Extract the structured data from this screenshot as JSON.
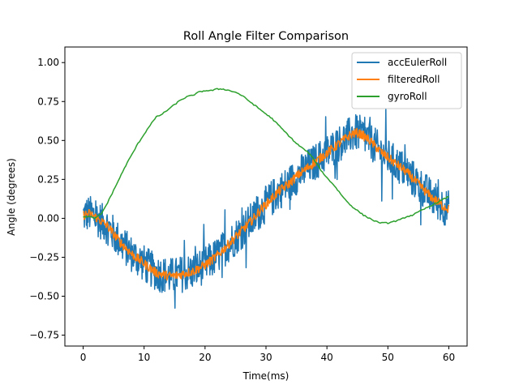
{
  "chart_data": {
    "type": "line",
    "title": "Roll Angle Filter Comparison",
    "xlabel": "Time(ms)",
    "ylabel": "Angle (degrees)",
    "xlim": [
      -3,
      63
    ],
    "ylim": [
      -0.82,
      1.1
    ],
    "xticks": [
      0,
      10,
      20,
      30,
      40,
      50,
      60
    ],
    "yticks": [
      -0.75,
      -0.5,
      -0.25,
      0.0,
      0.25,
      0.5,
      0.75,
      1.0
    ],
    "xtick_labels": [
      "0",
      "10",
      "20",
      "30",
      "40",
      "50",
      "60"
    ],
    "ytick_labels": [
      "−0.75",
      "−0.50",
      "−0.25",
      "0.00",
      "0.25",
      "0.50",
      "0.75",
      "1.00"
    ],
    "grid": false,
    "legend_position": "top-right",
    "series": [
      {
        "name": "accEulerRoll",
        "color": "#1f77b4",
        "x": [
          0,
          1,
          2,
          3,
          4,
          5,
          6,
          7,
          8,
          9,
          10,
          11,
          12,
          13,
          14,
          15,
          16,
          17,
          18,
          19,
          20,
          21,
          22,
          23,
          24,
          25,
          26,
          27,
          28,
          29,
          30,
          31,
          32,
          33,
          34,
          35,
          36,
          37,
          38,
          39,
          40,
          41,
          42,
          43,
          44,
          45,
          46,
          47,
          48,
          49,
          50,
          51,
          52,
          53,
          54,
          55,
          56,
          57,
          58,
          59,
          60
        ],
        "y": [
          0.02,
          0.03,
          0.01,
          -0.02,
          -0.05,
          -0.1,
          -0.15,
          -0.19,
          -0.23,
          -0.26,
          -0.29,
          -0.32,
          -0.35,
          -0.36,
          -0.37,
          -0.37,
          -0.36,
          -0.35,
          -0.34,
          -0.32,
          -0.3,
          -0.27,
          -0.24,
          -0.2,
          -0.16,
          -0.12,
          -0.08,
          -0.04,
          0.0,
          0.05,
          0.09,
          0.13,
          0.17,
          0.2,
          0.23,
          0.27,
          0.3,
          0.33,
          0.36,
          0.39,
          0.42,
          0.45,
          0.48,
          0.51,
          0.54,
          0.55,
          0.53,
          0.5,
          0.46,
          0.42,
          0.39,
          0.36,
          0.33,
          0.3,
          0.26,
          0.22,
          0.18,
          0.14,
          0.11,
          0.08,
          0.06
        ],
        "noise": 0.12
      },
      {
        "name": "filteredRoll",
        "color": "#ff7f0e",
        "x": [
          0,
          1,
          2,
          3,
          4,
          5,
          6,
          7,
          8,
          9,
          10,
          11,
          12,
          13,
          14,
          15,
          16,
          17,
          18,
          19,
          20,
          21,
          22,
          23,
          24,
          25,
          26,
          27,
          28,
          29,
          30,
          31,
          32,
          33,
          34,
          35,
          36,
          37,
          38,
          39,
          40,
          41,
          42,
          43,
          44,
          45,
          46,
          47,
          48,
          49,
          50,
          51,
          52,
          53,
          54,
          55,
          56,
          57,
          58,
          59,
          60
        ],
        "y": [
          0.02,
          0.03,
          0.01,
          -0.02,
          -0.05,
          -0.1,
          -0.15,
          -0.19,
          -0.23,
          -0.26,
          -0.29,
          -0.32,
          -0.35,
          -0.36,
          -0.37,
          -0.37,
          -0.36,
          -0.35,
          -0.34,
          -0.32,
          -0.3,
          -0.27,
          -0.24,
          -0.2,
          -0.16,
          -0.12,
          -0.08,
          -0.04,
          0.0,
          0.05,
          0.09,
          0.13,
          0.17,
          0.2,
          0.23,
          0.27,
          0.3,
          0.33,
          0.36,
          0.39,
          0.42,
          0.45,
          0.48,
          0.51,
          0.54,
          0.55,
          0.53,
          0.5,
          0.46,
          0.42,
          0.39,
          0.36,
          0.33,
          0.3,
          0.26,
          0.22,
          0.18,
          0.14,
          0.11,
          0.08,
          0.06
        ],
        "noise": 0.03
      },
      {
        "name": "gyroRoll",
        "color": "#2ca02c",
        "x": [
          0,
          1,
          2,
          3,
          4,
          5,
          6,
          7,
          8,
          9,
          10,
          11,
          12,
          13,
          14,
          15,
          16,
          17,
          18,
          19,
          20,
          21,
          22,
          23,
          24,
          25,
          26,
          27,
          28,
          29,
          30,
          31,
          32,
          33,
          34,
          35,
          36,
          37,
          38,
          39,
          40,
          41,
          42,
          43,
          44,
          45,
          46,
          47,
          48,
          49,
          50,
          51,
          52,
          53,
          54,
          55,
          56,
          57,
          58,
          59,
          60
        ],
        "y": [
          0.01,
          0.01,
          0.0,
          0.03,
          0.1,
          0.18,
          0.26,
          0.34,
          0.41,
          0.48,
          0.54,
          0.6,
          0.65,
          0.67,
          0.7,
          0.73,
          0.76,
          0.78,
          0.79,
          0.81,
          0.82,
          0.82,
          0.83,
          0.83,
          0.82,
          0.81,
          0.79,
          0.76,
          0.73,
          0.7,
          0.67,
          0.64,
          0.6,
          0.56,
          0.52,
          0.48,
          0.45,
          0.42,
          0.37,
          0.31,
          0.26,
          0.22,
          0.17,
          0.12,
          0.08,
          0.05,
          0.02,
          0.0,
          -0.02,
          -0.03,
          -0.03,
          -0.02,
          -0.01,
          0.01,
          0.02,
          0.04,
          0.06,
          0.08,
          0.1,
          0.12,
          0.14
        ],
        "noise": 0.004
      }
    ]
  }
}
